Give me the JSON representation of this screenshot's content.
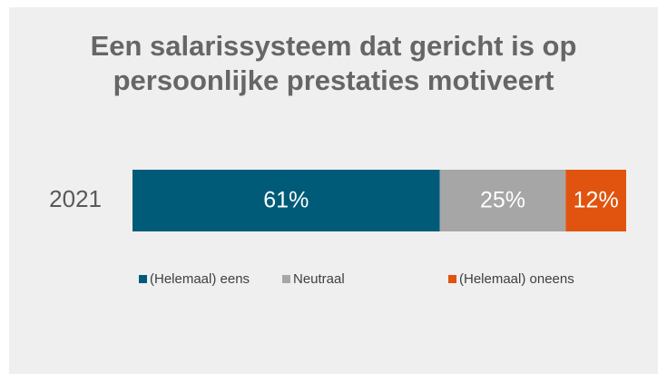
{
  "chart_data": {
    "type": "stacked-bar",
    "orientation": "horizontal",
    "title": "Een salarissysteem dat gericht is op persoonlijke prestaties motiveert",
    "categories": [
      "2021"
    ],
    "series": [
      {
        "name": "(Helemaal) eens",
        "color": "#005b78",
        "values": [
          61
        ],
        "value_labels": [
          "61%"
        ]
      },
      {
        "name": "Neutraal",
        "color": "#a6a6a6",
        "values": [
          25
        ],
        "value_labels": [
          "25%"
        ]
      },
      {
        "name": "(Helemaal) oneens",
        "color": "#e0540f",
        "values": [
          12
        ],
        "value_labels": [
          "12%"
        ]
      }
    ],
    "legend": "bottom"
  }
}
